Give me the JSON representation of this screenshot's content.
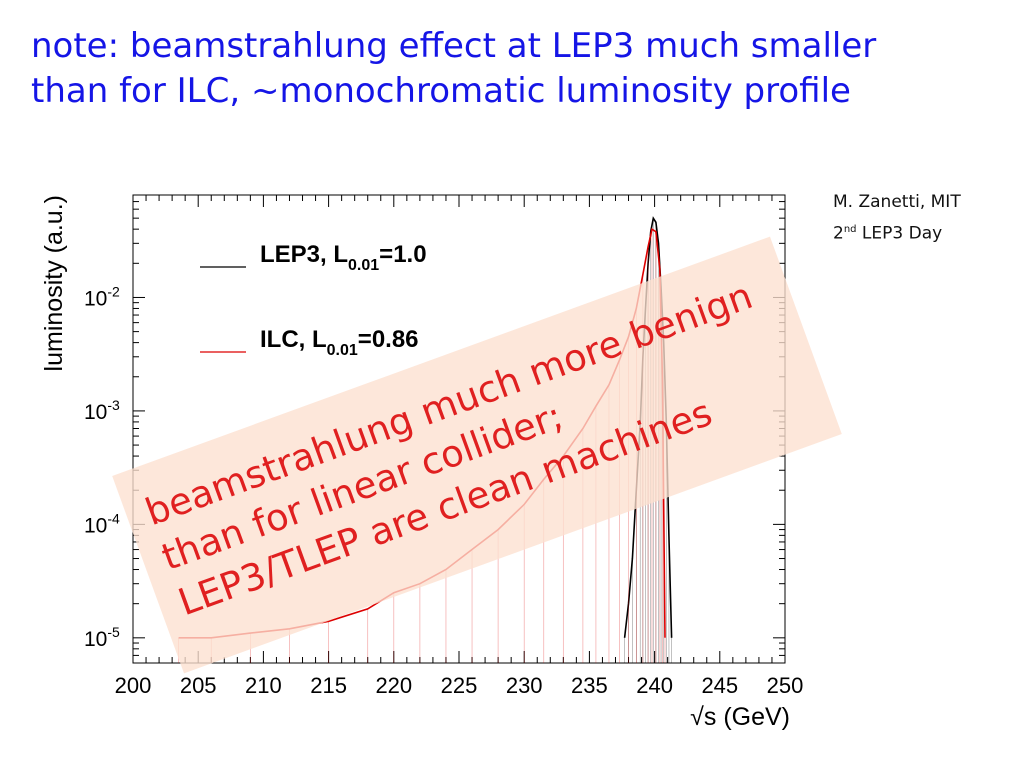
{
  "slide": {
    "title_line1": "note: beamstrahlung effect at LEP3 much smaller",
    "title_line2": "than for ILC, ~monochromatic luminosity profile"
  },
  "credit": {
    "author": "M. Zanetti, MIT",
    "event_ordinal": "2",
    "event_ordinal_suffix": "nd",
    "event_rest": " LEP3 Day"
  },
  "callout": {
    "line1": "beamstrahlung much more benign",
    "line2": "than for linear collider;",
    "line3": "LEP3/TLEP are clean machines",
    "text_color": "#e02020",
    "box_color": "#fde0cf"
  },
  "chart_data": {
    "type": "line",
    "xlabel": "√s (GeV)",
    "ylabel": "luminosity (a.u.)",
    "xlim": [
      200,
      250
    ],
    "ylim": [
      6e-06,
      0.08
    ],
    "y_scale": "log",
    "x_ticks": [
      200,
      205,
      210,
      215,
      220,
      225,
      230,
      235,
      240,
      245,
      250
    ],
    "x_tick_labels": [
      "200",
      "205",
      "210",
      "215",
      "220",
      "225",
      "230",
      "235",
      "240",
      "245",
      "250"
    ],
    "y_ticks": [
      1e-05,
      0.0001,
      0.001,
      0.01
    ],
    "y_tick_labels": [
      {
        "base": "10",
        "exp": "-5"
      },
      {
        "base": "10",
        "exp": "-4"
      },
      {
        "base": "10",
        "exp": "-3"
      },
      {
        "base": "10",
        "exp": "-2"
      }
    ],
    "legend_position": "top-left",
    "series": [
      {
        "name_main": "LEP3, L",
        "name_sub": "0.01",
        "name_tail": "=1.0",
        "color": "#000000",
        "x": [
          237.7,
          238.0,
          238.3,
          238.6,
          238.9,
          239.1,
          239.3,
          239.5,
          239.7,
          239.9,
          240.1,
          240.3,
          240.5,
          240.7,
          240.9,
          241.1,
          241.3
        ],
        "y": [
          1e-05,
          2e-05,
          5e-05,
          0.0002,
          0.0008,
          0.003,
          0.008,
          0.02,
          0.038,
          0.05,
          0.046,
          0.03,
          0.012,
          0.004,
          0.0008,
          8e-05,
          1e-05
        ]
      },
      {
        "name_main": "ILC, L",
        "name_sub": "0.01",
        "name_tail": "=0.86",
        "color": "#dd0000",
        "x": [
          203.5,
          206,
          209,
          212,
          215,
          218,
          220,
          222,
          224,
          226,
          228,
          230,
          231.5,
          233,
          234.5,
          235.5,
          236.5,
          237.3,
          238.0,
          238.6,
          239.1,
          239.5,
          239.8,
          240.1,
          240.4,
          240.6,
          240.8
        ],
        "y": [
          1e-05,
          1e-05,
          1.1e-05,
          1.2e-05,
          1.4e-05,
          1.8e-05,
          2.5e-05,
          3e-05,
          4e-05,
          6e-05,
          9e-05,
          0.00015,
          0.00025,
          0.0004,
          0.0007,
          0.0011,
          0.0017,
          0.0028,
          0.0045,
          0.008,
          0.016,
          0.028,
          0.04,
          0.038,
          0.018,
          0.002,
          1e-05
        ]
      }
    ]
  }
}
